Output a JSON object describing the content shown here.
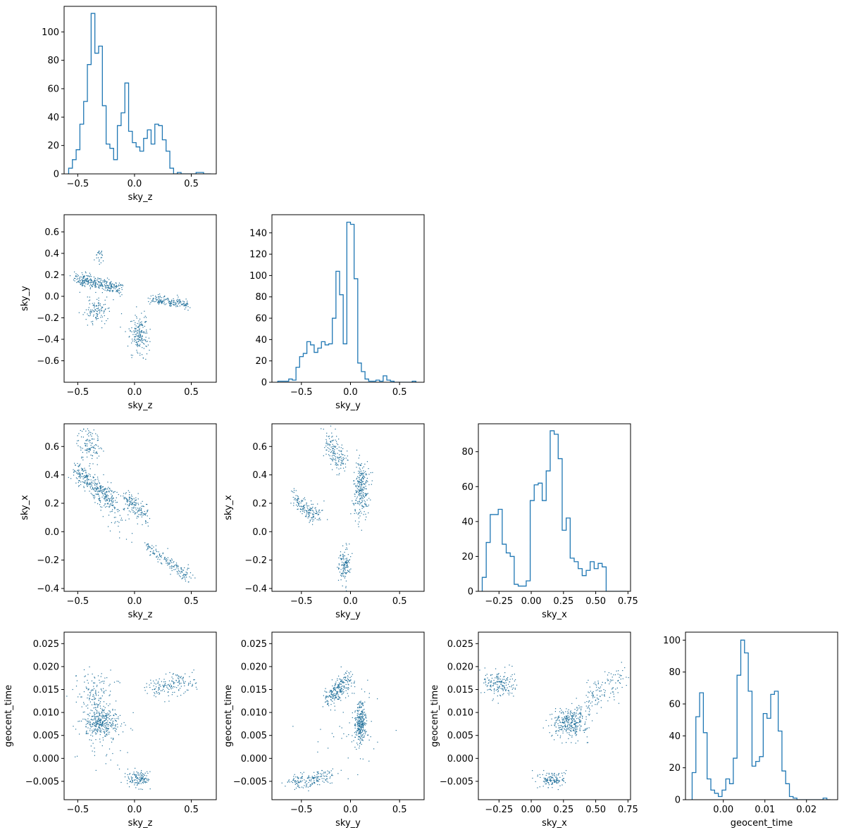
{
  "style": {
    "series_color": "#1f77b4",
    "marker_color": "#1f6f9a"
  },
  "chart_data": [
    {
      "type": "histogram",
      "row": 0,
      "col": 0,
      "xlabel": "sky_z",
      "ylabel": "",
      "xlim": [
        -0.62,
        0.72
      ],
      "ylim": [
        0,
        118
      ],
      "xticks": [
        -0.5,
        0.0,
        0.5
      ],
      "xtick_labels": [
        "−0.5",
        "0.0",
        "0.5"
      ],
      "yticks": [
        0,
        20,
        40,
        60,
        80,
        100
      ],
      "ytick_labels": [
        "0",
        "20",
        "40",
        "60",
        "80",
        "100"
      ],
      "bin_edges": [
        -0.58,
        -0.547,
        -0.514,
        -0.481,
        -0.448,
        -0.415,
        -0.382,
        -0.349,
        -0.316,
        -0.283,
        -0.25,
        -0.217,
        -0.184,
        -0.151,
        -0.118,
        -0.085,
        -0.052,
        -0.019,
        0.014,
        0.047,
        0.08,
        0.113,
        0.146,
        0.179,
        0.212,
        0.245,
        0.278,
        0.311,
        0.344,
        0.377,
        0.41,
        0.443,
        0.476,
        0.509,
        0.542,
        0.575,
        0.608,
        0.641,
        0.674
      ],
      "counts": [
        4,
        10,
        17,
        35,
        51,
        77,
        113,
        85,
        90,
        48,
        21,
        18,
        10,
        34,
        43,
        64,
        30,
        22,
        19,
        16,
        25,
        31,
        21,
        35,
        34,
        24,
        16,
        4,
        0,
        1,
        0,
        0,
        0,
        0,
        1,
        1,
        0,
        0
      ]
    },
    {
      "type": "scatter",
      "row": 1,
      "col": 0,
      "xlabel": "sky_z",
      "ylabel": "sky_y",
      "xlim": [
        -0.62,
        0.72
      ],
      "ylim": [
        -0.8,
        0.76
      ],
      "xticks": [
        -0.5,
        0.0,
        0.5
      ],
      "xtick_labels": [
        "−0.5",
        "0.0",
        "0.5"
      ],
      "yticks": [
        -0.6,
        -0.4,
        -0.2,
        0.0,
        0.2,
        0.4,
        0.6
      ],
      "ytick_labels": [
        "−0.6",
        "−0.4",
        "−0.2",
        "0.0",
        "0.2",
        "0.4",
        "0.6"
      ],
      "clusters": [
        {
          "n": 320,
          "x1": -0.52,
          "y1": 0.17,
          "x2": -0.13,
          "y2": 0.07,
          "sx": 0.02,
          "sy": 0.03
        },
        {
          "n": 170,
          "x1": 0.12,
          "y1": -0.02,
          "x2": 0.48,
          "y2": -0.08,
          "sx": 0.015,
          "sy": 0.025
        },
        {
          "n": 180,
          "cx": 0.04,
          "cy": -0.36,
          "sx": 0.04,
          "sy": 0.09
        },
        {
          "n": 110,
          "cx": -0.33,
          "cy": -0.14,
          "sx": 0.06,
          "sy": 0.06
        },
        {
          "n": 25,
          "cx": -0.31,
          "cy": 0.39,
          "sx": 0.02,
          "sy": 0.04
        }
      ]
    },
    {
      "type": "histogram",
      "row": 1,
      "col": 1,
      "xlabel": "sky_y",
      "ylabel": "",
      "xlim": [
        -0.8,
        0.75
      ],
      "ylim": [
        0,
        157
      ],
      "xticks": [
        -0.5,
        0.0,
        0.5
      ],
      "xtick_labels": [
        "−0.5",
        "0.0",
        "0.5"
      ],
      "yticks": [
        0,
        20,
        40,
        60,
        80,
        100,
        120,
        140
      ],
      "ytick_labels": [
        "0",
        "20",
        "40",
        "60",
        "80",
        "100",
        "120",
        "140"
      ],
      "bin_edges": [
        -0.74,
        -0.703,
        -0.666,
        -0.629,
        -0.592,
        -0.555,
        -0.518,
        -0.481,
        -0.444,
        -0.407,
        -0.37,
        -0.333,
        -0.296,
        -0.259,
        -0.222,
        -0.185,
        -0.148,
        -0.111,
        -0.074,
        -0.037,
        0.0,
        0.037,
        0.074,
        0.111,
        0.148,
        0.185,
        0.222,
        0.259,
        0.296,
        0.333,
        0.37,
        0.407,
        0.444,
        0.481,
        0.518,
        0.555,
        0.592,
        0.629,
        0.666
      ],
      "counts": [
        1,
        1,
        1,
        3,
        2,
        14,
        24,
        27,
        38,
        35,
        28,
        32,
        38,
        35,
        36,
        60,
        104,
        82,
        36,
        150,
        148,
        97,
        18,
        10,
        3,
        1,
        1,
        2,
        1,
        6,
        2,
        1,
        0,
        0,
        0,
        0,
        0,
        1
      ]
    },
    {
      "type": "scatter",
      "row": 2,
      "col": 0,
      "xlabel": "sky_z",
      "ylabel": "sky_x",
      "xlim": [
        -0.62,
        0.72
      ],
      "ylim": [
        -0.42,
        0.76
      ],
      "xticks": [
        -0.5,
        0.0,
        0.5
      ],
      "xtick_labels": [
        "−0.5",
        "0.0",
        "0.5"
      ],
      "yticks": [
        -0.4,
        -0.2,
        0.0,
        0.2,
        0.4,
        0.6
      ],
      "ytick_labels": [
        "−0.4",
        "−0.2",
        "0.0",
        "0.2",
        "0.4",
        "0.6"
      ],
      "clusters": [
        {
          "n": 320,
          "x1": -0.52,
          "y1": 0.44,
          "x2": -0.18,
          "y2": 0.2,
          "sx": 0.03,
          "sy": 0.04
        },
        {
          "n": 160,
          "x1": 0.1,
          "y1": -0.1,
          "x2": 0.5,
          "y2": -0.33,
          "sx": 0.02,
          "sy": 0.02
        },
        {
          "n": 150,
          "x1": -0.08,
          "y1": 0.25,
          "x2": 0.1,
          "y2": 0.1,
          "sx": 0.03,
          "sy": 0.03
        },
        {
          "n": 110,
          "cx": -0.4,
          "cy": 0.62,
          "sx": 0.05,
          "sy": 0.06
        },
        {
          "n": 60,
          "x1": -0.3,
          "y1": 0.3,
          "x2": -0.05,
          "y2": 0.0,
          "sx": 0.06,
          "sy": 0.06
        }
      ]
    },
    {
      "type": "scatter",
      "row": 2,
      "col": 1,
      "xlabel": "sky_y",
      "ylabel": "sky_x",
      "xlim": [
        -0.8,
        0.75
      ],
      "ylim": [
        -0.42,
        0.76
      ],
      "xticks": [
        -0.5,
        0.0,
        0.5
      ],
      "xtick_labels": [
        "−0.5",
        "0.0",
        "0.5"
      ],
      "yticks": [
        -0.4,
        -0.2,
        0.0,
        0.2,
        0.4,
        0.6
      ],
      "ytick_labels": [
        "−0.4",
        "−0.2",
        "0.0",
        "0.2",
        "0.4",
        "0.6"
      ],
      "clusters": [
        {
          "n": 260,
          "cx": 0.11,
          "cy": 0.3,
          "sx": 0.04,
          "sy": 0.1
        },
        {
          "n": 160,
          "x1": -0.58,
          "y1": 0.24,
          "x2": -0.32,
          "y2": 0.1,
          "sx": 0.04,
          "sy": 0.03
        },
        {
          "n": 150,
          "x1": -0.25,
          "y1": 0.68,
          "x2": -0.08,
          "y2": 0.45,
          "sx": 0.04,
          "sy": 0.04
        },
        {
          "n": 130,
          "cx": -0.06,
          "cy": -0.24,
          "sx": 0.03,
          "sy": 0.07
        }
      ]
    },
    {
      "type": "histogram",
      "row": 2,
      "col": 2,
      "xlabel": "sky_x",
      "ylabel": "",
      "xlim": [
        -0.41,
        0.77
      ],
      "ylim": [
        0,
        96
      ],
      "xticks": [
        -0.25,
        0.0,
        0.25,
        0.5,
        0.75
      ],
      "xtick_labels": [
        "−0.25",
        "0.00",
        "0.25",
        "0.50",
        "0.75"
      ],
      "yticks": [
        0,
        20,
        40,
        60,
        80
      ],
      "ytick_labels": [
        "0",
        "20",
        "40",
        "60",
        "80"
      ],
      "bin_edges": [
        -0.38,
        -0.349,
        -0.318,
        -0.287,
        -0.256,
        -0.225,
        -0.194,
        -0.163,
        -0.132,
        -0.101,
        -0.07,
        -0.039,
        -0.008,
        0.023,
        0.054,
        0.085,
        0.116,
        0.147,
        0.178,
        0.209,
        0.24,
        0.271,
        0.302,
        0.333,
        0.364,
        0.395,
        0.426,
        0.457,
        0.488,
        0.519,
        0.55,
        0.581,
        0.612,
        0.643,
        0.674,
        0.705,
        0.736
      ],
      "counts": [
        8,
        28,
        44,
        44,
        47,
        27,
        22,
        20,
        4,
        3,
        3,
        6,
        52,
        61,
        62,
        52,
        69,
        92,
        90,
        76,
        35,
        42,
        19,
        17,
        13,
        9,
        12,
        17,
        13,
        16,
        14,
        0,
        0,
        0,
        0,
        0
      ]
    },
    {
      "type": "scatter",
      "row": 3,
      "col": 0,
      "xlabel": "sky_z",
      "ylabel": "geocent_time",
      "xlim": [
        -0.62,
        0.72
      ],
      "ylim": [
        -0.009,
        0.0275
      ],
      "xticks": [
        -0.5,
        0.0,
        0.5
      ],
      "xtick_labels": [
        "−0.5",
        "0.0",
        "0.5"
      ],
      "yticks": [
        -0.005,
        0.0,
        0.005,
        0.01,
        0.015,
        0.02,
        0.025
      ],
      "ytick_labels": [
        "−0.005",
        "0.000",
        "0.005",
        "0.010",
        "0.015",
        "0.020",
        "0.025"
      ],
      "clusters": [
        {
          "n": 320,
          "cx": -0.3,
          "cy": 0.0078,
          "sx": 0.07,
          "sy": 0.0017
        },
        {
          "n": 160,
          "x1": 0.15,
          "y1": 0.0148,
          "x2": 0.5,
          "y2": 0.0172,
          "sx": 0.05,
          "sy": 0.0012
        },
        {
          "n": 130,
          "cx": -0.35,
          "cy": 0.0142,
          "sx": 0.07,
          "sy": 0.0022
        },
        {
          "n": 130,
          "cx": 0.04,
          "cy": -0.0045,
          "sx": 0.05,
          "sy": 0.0009
        },
        {
          "n": 60,
          "cx": -0.25,
          "cy": 0.006,
          "sx": 0.14,
          "sy": 0.004
        }
      ]
    },
    {
      "type": "scatter",
      "row": 3,
      "col": 1,
      "xlabel": "sky_y",
      "ylabel": "geocent_time",
      "xlim": [
        -0.8,
        0.75
      ],
      "ylim": [
        -0.009,
        0.0275
      ],
      "xticks": [
        -0.5,
        0.0,
        0.5
      ],
      "xtick_labels": [
        "−0.5",
        "0.0",
        "0.5"
      ],
      "yticks": [
        -0.005,
        0.0,
        0.005,
        0.01,
        0.015,
        0.02,
        0.025
      ],
      "ytick_labels": [
        "−0.005",
        "0.000",
        "0.005",
        "0.010",
        "0.015",
        "0.020",
        "0.025"
      ],
      "clusters": [
        {
          "n": 280,
          "cx": 0.1,
          "cy": 0.0078,
          "sx": 0.03,
          "sy": 0.0022
        },
        {
          "n": 240,
          "x1": -0.22,
          "y1": 0.013,
          "x2": -0.02,
          "y2": 0.0175,
          "sx": 0.04,
          "sy": 0.0012
        },
        {
          "n": 170,
          "x1": -0.6,
          "y1": -0.0055,
          "x2": -0.22,
          "y2": -0.0035,
          "sx": 0.05,
          "sy": 0.0009
        },
        {
          "n": 40,
          "cx": 0.0,
          "cy": 0.005,
          "sx": 0.2,
          "sy": 0.006
        }
      ]
    },
    {
      "type": "scatter",
      "row": 3,
      "col": 2,
      "xlabel": "sky_x",
      "ylabel": "geocent_time",
      "xlim": [
        -0.41,
        0.77
      ],
      "ylim": [
        -0.009,
        0.0275
      ],
      "xticks": [
        -0.25,
        0.0,
        0.25,
        0.5,
        0.75
      ],
      "xtick_labels": [
        "−0.25",
        "0.00",
        "0.25",
        "0.50",
        "0.75"
      ],
      "yticks": [
        -0.005,
        0.0,
        0.005,
        0.01,
        0.015,
        0.02,
        0.025
      ],
      "ytick_labels": [
        "−0.005",
        "0.000",
        "0.005",
        "0.010",
        "0.015",
        "0.020",
        "0.025"
      ],
      "clusters": [
        {
          "n": 300,
          "cx": 0.3,
          "cy": 0.0078,
          "sx": 0.07,
          "sy": 0.0016
        },
        {
          "n": 170,
          "cx": -0.25,
          "cy": 0.0162,
          "sx": 0.06,
          "sy": 0.0015
        },
        {
          "n": 130,
          "cx": 0.17,
          "cy": -0.0046,
          "sx": 0.05,
          "sy": 0.0009
        },
        {
          "n": 110,
          "x1": 0.45,
          "y1": 0.0125,
          "x2": 0.7,
          "y2": 0.018,
          "sx": 0.04,
          "sy": 0.0016
        },
        {
          "n": 40,
          "x1": 0.3,
          "y1": 0.0085,
          "x2": 0.5,
          "y2": 0.0125,
          "sx": 0.04,
          "sy": 0.001
        }
      ]
    },
    {
      "type": "histogram",
      "row": 3,
      "col": 3,
      "xlabel": "geocent_time",
      "ylabel": "",
      "xlim": [
        -0.0091,
        0.0275
      ],
      "ylim": [
        0,
        105
      ],
      "xticks": [
        0.0,
        0.01,
        0.02
      ],
      "xtick_labels": [
        "0.00",
        "0.01",
        "0.02"
      ],
      "yticks": [
        0,
        20,
        40,
        60,
        80,
        100
      ],
      "ytick_labels": [
        "0",
        "20",
        "40",
        "60",
        "80",
        "100"
      ],
      "bin_edges": [
        -0.0075,
        -0.0066,
        -0.0057,
        -0.0048,
        -0.0039,
        -0.003,
        -0.0021,
        -0.0012,
        -0.0003,
        0.0006,
        0.0015,
        0.0024,
        0.0033,
        0.0042,
        0.0051,
        0.006,
        0.0069,
        0.0078,
        0.0087,
        0.0096,
        0.0105,
        0.0114,
        0.0123,
        0.0132,
        0.0141,
        0.015,
        0.0159,
        0.0168,
        0.0177,
        0.0186,
        0.0195,
        0.0204,
        0.0213,
        0.0222,
        0.0231,
        0.024,
        0.0249,
        0.0258
      ],
      "counts": [
        17,
        52,
        67,
        42,
        13,
        6,
        4,
        2,
        6,
        13,
        10,
        26,
        78,
        100,
        92,
        68,
        21,
        24,
        27,
        54,
        51,
        66,
        68,
        43,
        18,
        10,
        2,
        1,
        0,
        0,
        0,
        0,
        0,
        0,
        0,
        1,
        0
      ]
    }
  ]
}
